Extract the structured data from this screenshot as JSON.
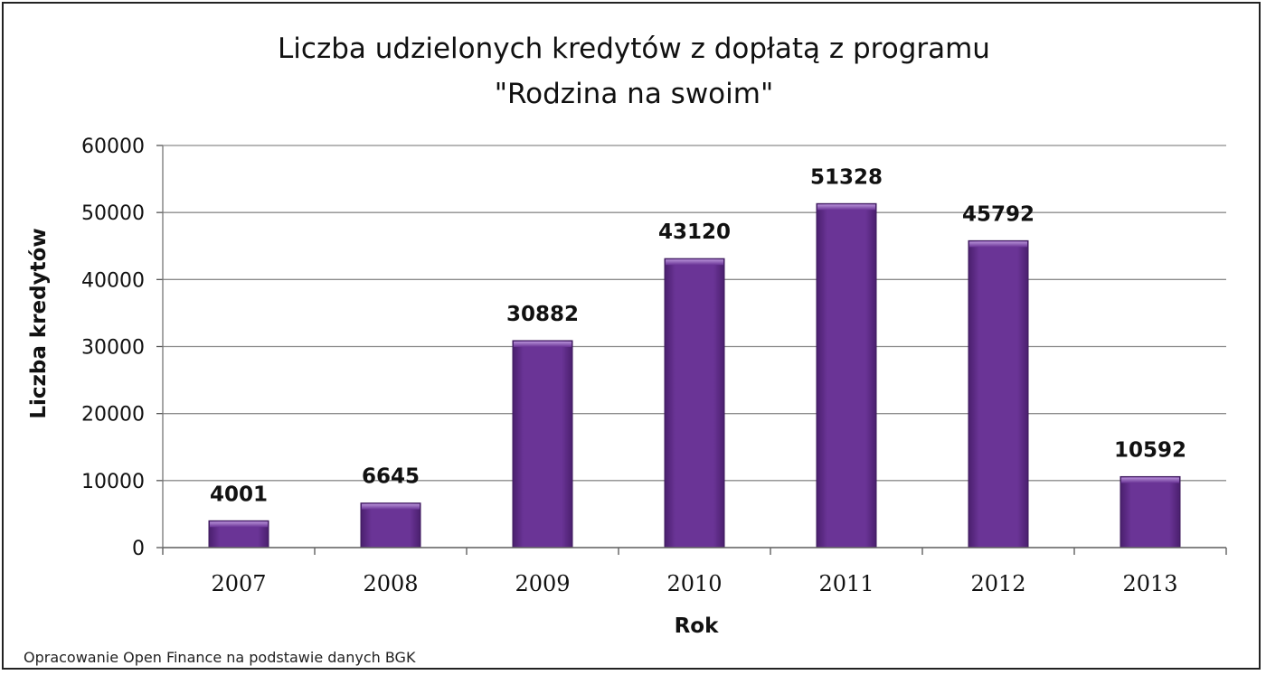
{
  "chart_data": {
    "type": "bar",
    "title_line1": "Liczba udzielonych kredytów z dopłatą z programu",
    "title_line2": "\"Rodzina na swoim\"",
    "xlabel": "Rok",
    "ylabel": "Liczba kredytów",
    "categories": [
      "2007",
      "2008",
      "2009",
      "2010",
      "2011",
      "2012",
      "2013"
    ],
    "values": [
      4001,
      6645,
      30882,
      43120,
      51328,
      45792,
      10592
    ],
    "data_labels": [
      "4001",
      "6645",
      "30882",
      "43120",
      "51328",
      "45792",
      "10592"
    ],
    "ylim": [
      0,
      60000
    ],
    "yticks": [
      "0",
      "10000",
      "20000",
      "30000",
      "40000",
      "50000",
      "60000"
    ],
    "ytick_values": [
      0,
      10000,
      20000,
      30000,
      40000,
      50000,
      60000
    ],
    "grid": true,
    "legend": "none",
    "bar_color": "#5f2d8a",
    "bar_highlight": "#8e5fb8",
    "grid_color": "#8c8c8c"
  },
  "source_note": "Opracowanie Open Finance na podstawie  danych BGK"
}
